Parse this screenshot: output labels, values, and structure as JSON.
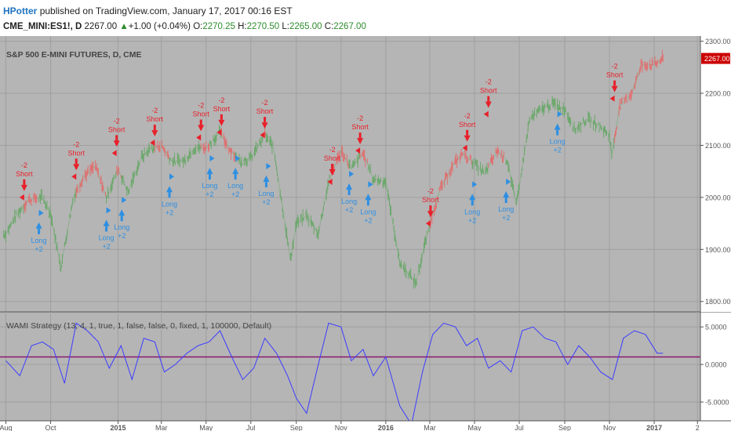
{
  "header": {
    "author": "HPotter",
    "published_text": "published on TradingView.com, January 17, 2017 00:16 EST",
    "symbol": "CME_MINI:ES1!, D",
    "last": "2267.00",
    "change": "+1.00 (+0.04%)",
    "open_label": "O:",
    "open": "2270.25",
    "high_label": "H:",
    "high": "2270.50",
    "low_label": "L:",
    "low": "2265.00",
    "close_label": "C:",
    "close": "2267.00"
  },
  "colors": {
    "panel_bg": "#b5b5b5",
    "up_bar": "#6aa86a",
    "down_bar": "#e07070",
    "short_marker": "#e8202a",
    "long_marker": "#2d8fe3",
    "oscillator_line": "#3c3cff",
    "zero_line": "#8b1a6b",
    "price_label_bg": "#cc0000"
  },
  "chart_data": [
    {
      "type": "line",
      "title": "S&P 500 E-MINI FUTURES, D, CME",
      "ylim": [
        1780,
        2310
      ],
      "y_ticks": [
        1800,
        1900,
        2000,
        2100,
        2200,
        2300
      ],
      "y_tick_labels": [
        "1800.00",
        "1900.00",
        "2000.00",
        "2100.00",
        "2200.00",
        "2300.00"
      ],
      "last_price_label": "2267.00",
      "x": [
        "2014-08-01",
        "2014-08-15",
        "2014-09-01",
        "2014-09-19",
        "2014-10-01",
        "2014-10-15",
        "2014-11-01",
        "2014-11-15",
        "2014-12-01",
        "2014-12-16",
        "2015-01-01",
        "2015-01-15",
        "2015-02-01",
        "2015-02-15",
        "2015-03-01",
        "2015-03-15",
        "2015-04-01",
        "2015-04-15",
        "2015-05-01",
        "2015-05-20",
        "2015-06-01",
        "2015-06-15",
        "2015-07-01",
        "2015-07-20",
        "2015-08-01",
        "2015-08-24",
        "2015-09-01",
        "2015-09-15",
        "2015-10-01",
        "2015-10-15",
        "2015-11-01",
        "2015-11-15",
        "2015-12-01",
        "2015-12-15",
        "2016-01-01",
        "2016-01-20",
        "2016-02-11",
        "2016-03-01",
        "2016-03-15",
        "2016-04-01",
        "2016-04-15",
        "2016-05-01",
        "2016-05-15",
        "2016-06-01",
        "2016-06-15",
        "2016-06-27",
        "2016-07-15",
        "2016-08-01",
        "2016-08-15",
        "2016-09-01",
        "2016-09-15",
        "2016-10-01",
        "2016-10-15",
        "2016-11-01",
        "2016-11-04",
        "2016-11-15",
        "2016-12-01",
        "2016-12-15",
        "2017-01-01",
        "2017-01-13"
      ],
      "values": [
        1930,
        1965,
        1995,
        2000,
        1970,
        1865,
        2000,
        2040,
        2060,
        2000,
        2055,
        2010,
        2075,
        2095,
        2100,
        2070,
        2070,
        2095,
        2095,
        2125,
        2095,
        2070,
        2075,
        2120,
        2095,
        1880,
        1950,
        1965,
        1930,
        2030,
        2090,
        2055,
        2085,
        2035,
        2030,
        1875,
        1835,
        1950,
        2015,
        2060,
        2085,
        2065,
        2045,
        2090,
        2070,
        1985,
        2150,
        2170,
        2180,
        2170,
        2130,
        2150,
        2140,
        2120,
        2080,
        2175,
        2200,
        2255,
        2255,
        2267
      ]
    },
    {
      "type": "line",
      "title": "WAMI Strategy (13, 4, 1, true, 1, false, false, 0, fixed, 1, 100000, Default)",
      "ylim": [
        -7.5,
        7.0
      ],
      "y_ticks": [
        5.0,
        0.0,
        -5.0
      ],
      "y_tick_labels": [
        "5.0000",
        "0.0000",
        "-5.0000"
      ],
      "level_line": 1.0,
      "x": [
        "2014-08-01",
        "2014-08-20",
        "2014-09-05",
        "2014-09-20",
        "2014-10-05",
        "2014-10-20",
        "2014-11-05",
        "2014-11-20",
        "2014-12-05",
        "2014-12-20",
        "2015-01-05",
        "2015-01-20",
        "2015-02-05",
        "2015-02-20",
        "2015-03-05",
        "2015-03-20",
        "2015-04-05",
        "2015-04-20",
        "2015-05-05",
        "2015-05-20",
        "2015-06-05",
        "2015-06-20",
        "2015-07-05",
        "2015-07-20",
        "2015-08-05",
        "2015-08-20",
        "2015-09-01",
        "2015-09-15",
        "2015-10-01",
        "2015-10-15",
        "2015-11-01",
        "2015-11-15",
        "2015-12-01",
        "2015-12-15",
        "2016-01-01",
        "2016-01-20",
        "2016-02-05",
        "2016-02-20",
        "2016-03-05",
        "2016-03-20",
        "2016-04-05",
        "2016-04-20",
        "2016-05-05",
        "2016-05-20",
        "2016-06-05",
        "2016-06-20",
        "2016-07-05",
        "2016-07-20",
        "2016-08-05",
        "2016-08-20",
        "2016-09-05",
        "2016-09-20",
        "2016-10-05",
        "2016-10-20",
        "2016-11-05",
        "2016-11-20",
        "2016-12-05",
        "2016-12-20",
        "2017-01-05",
        "2017-01-13"
      ],
      "values": [
        0.5,
        -1.5,
        2.5,
        3.0,
        2.0,
        -2.5,
        5.5,
        4.5,
        3.0,
        -0.5,
        2.5,
        -2.0,
        3.5,
        3.0,
        -1.0,
        0.0,
        1.5,
        2.5,
        3.0,
        4.5,
        1.0,
        -2.0,
        -0.5,
        3.5,
        1.5,
        -1.5,
        -4.5,
        -6.5,
        0.0,
        5.5,
        5.0,
        0.5,
        2.0,
        -1.5,
        1.0,
        -5.5,
        -8.0,
        -1.0,
        4.0,
        5.5,
        5.0,
        2.5,
        3.5,
        -0.5,
        0.5,
        -1.0,
        4.5,
        5.0,
        3.5,
        3.0,
        0.0,
        2.5,
        1.0,
        -1.0,
        -2.0,
        3.5,
        4.5,
        4.0,
        1.5,
        1.5
      ]
    }
  ],
  "x_axis": {
    "ticks": [
      {
        "date": "2014-08-01",
        "label": "Aug",
        "bold": false
      },
      {
        "date": "2014-10-01",
        "label": "Oct",
        "bold": false
      },
      {
        "date": "2015-01-01",
        "label": "2015",
        "bold": true
      },
      {
        "date": "2015-03-01",
        "label": "Mar",
        "bold": false
      },
      {
        "date": "2015-05-01",
        "label": "May",
        "bold": false
      },
      {
        "date": "2015-07-01",
        "label": "Jul",
        "bold": false
      },
      {
        "date": "2015-09-01",
        "label": "Sep",
        "bold": false
      },
      {
        "date": "2015-11-01",
        "label": "Nov",
        "bold": false
      },
      {
        "date": "2016-01-01",
        "label": "2016",
        "bold": true
      },
      {
        "date": "2016-03-01",
        "label": "Mar",
        "bold": false
      },
      {
        "date": "2016-05-01",
        "label": "May",
        "bold": false
      },
      {
        "date": "2016-07-01",
        "label": "Jul",
        "bold": false
      },
      {
        "date": "2016-09-01",
        "label": "Sep",
        "bold": false
      },
      {
        "date": "2016-11-01",
        "label": "Nov",
        "bold": false
      },
      {
        "date": "2017-01-01",
        "label": "2017",
        "bold": true
      },
      {
        "date": "2017-03-01",
        "label": "2",
        "bold": false
      }
    ]
  },
  "signals": [
    {
      "type": "short",
      "date": "2014-08-26",
      "price": 2000,
      "qty": "-2",
      "label": "Short"
    },
    {
      "type": "long",
      "date": "2014-09-15",
      "price": 1970,
      "qty": "+2",
      "label": "Long"
    },
    {
      "type": "short",
      "date": "2014-11-05",
      "price": 2040,
      "qty": "-2",
      "label": "Short"
    },
    {
      "type": "long",
      "date": "2014-12-16",
      "price": 1975,
      "qty": "+2",
      "label": "Long"
    },
    {
      "type": "short",
      "date": "2014-12-30",
      "price": 2085,
      "qty": "-2",
      "label": "Short"
    },
    {
      "type": "long",
      "date": "2015-01-06",
      "price": 1995,
      "qty": "+2",
      "label": "Long"
    },
    {
      "type": "short",
      "date": "2015-02-20",
      "price": 2105,
      "qty": "-2",
      "label": "Short"
    },
    {
      "type": "long",
      "date": "2015-03-12",
      "price": 2040,
      "qty": "+2",
      "label": "Long"
    },
    {
      "type": "short",
      "date": "2015-04-24",
      "price": 2115,
      "qty": "-2",
      "label": "Short"
    },
    {
      "type": "long",
      "date": "2015-05-06",
      "price": 2075,
      "qty": "+2",
      "label": "Long"
    },
    {
      "type": "short",
      "date": "2015-05-22",
      "price": 2125,
      "qty": "-2",
      "label": "Short"
    },
    {
      "type": "long",
      "date": "2015-06-10",
      "price": 2075,
      "qty": "+2",
      "label": "Long"
    },
    {
      "type": "short",
      "date": "2015-07-20",
      "price": 2120,
      "qty": "-2",
      "label": "Short"
    },
    {
      "type": "long",
      "date": "2015-07-22",
      "price": 2060,
      "qty": "+2",
      "label": "Long"
    },
    {
      "type": "short",
      "date": "2015-10-20",
      "price": 2030,
      "qty": "-2",
      "label": "Short"
    },
    {
      "type": "long",
      "date": "2015-11-12",
      "price": 2045,
      "qty": "+2",
      "label": "Long"
    },
    {
      "type": "short",
      "date": "2015-11-27",
      "price": 2090,
      "qty": "-2",
      "label": "Short"
    },
    {
      "type": "long",
      "date": "2015-12-08",
      "price": 2025,
      "qty": "+2",
      "label": "Long"
    },
    {
      "type": "short",
      "date": "2016-03-02",
      "price": 1950,
      "qty": "-2",
      "label": "Short"
    },
    {
      "type": "long",
      "date": "2016-04-28",
      "price": 2025,
      "qty": "+2",
      "label": "Long"
    },
    {
      "type": "short",
      "date": "2016-04-21",
      "price": 2095,
      "qty": "-2",
      "label": "Short"
    },
    {
      "type": "short",
      "date": "2016-05-20",
      "price": 2160,
      "qty": "-2",
      "label": "Short"
    },
    {
      "type": "long",
      "date": "2016-06-13",
      "price": 2030,
      "qty": "+2",
      "label": "Long"
    },
    {
      "type": "long",
      "date": "2016-08-22",
      "price": 2160,
      "qty": "+2",
      "label": "Long"
    },
    {
      "type": "short",
      "date": "2016-11-08",
      "price": 2190,
      "qty": "-2",
      "label": "Short"
    }
  ]
}
